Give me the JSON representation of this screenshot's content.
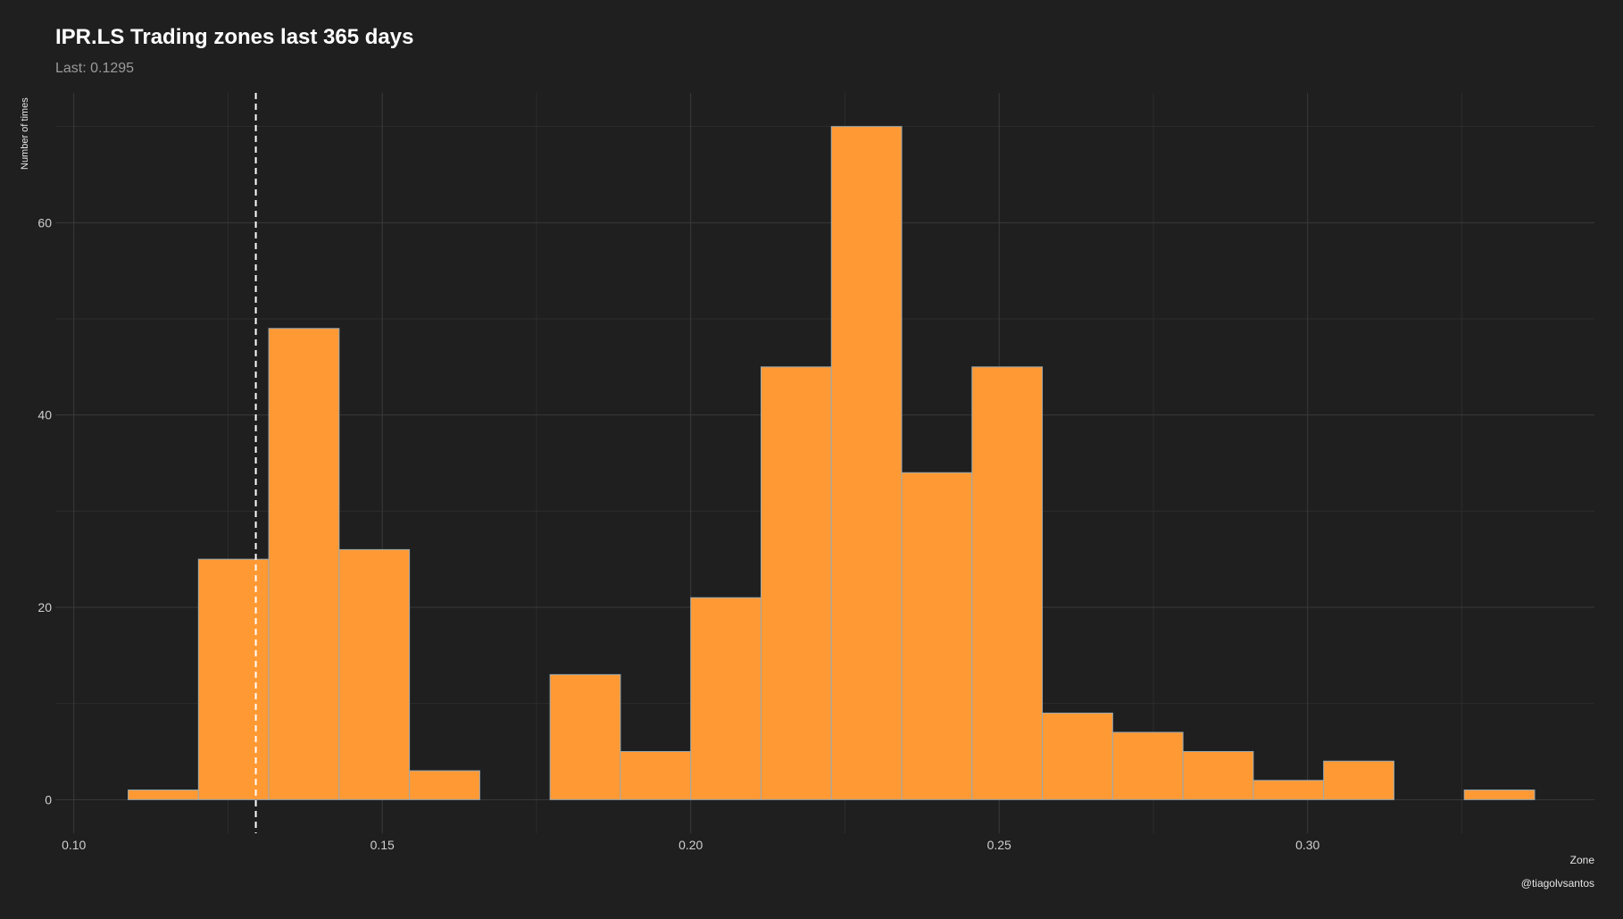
{
  "header": {
    "title": "IPR.LS Trading zones last 365 days",
    "subtitle": "Last: 0.1295"
  },
  "caption": "@tiagolvsantos",
  "chart_data": {
    "type": "bar",
    "title": "IPR.LS Trading zones last 365 days",
    "subtitle": "Last: 0.1295",
    "xlabel": "Zone",
    "ylabel": "Number of times",
    "xlim": [
      0.097,
      0.3465
    ],
    "ylim": [
      -3.5,
      73.5
    ],
    "x_ticks": [
      0.1,
      0.15,
      0.2,
      0.25,
      0.3
    ],
    "x_tick_labels": [
      "0.10",
      "0.15",
      "0.20",
      "0.25",
      "0.30"
    ],
    "y_ticks": [
      0,
      20,
      40,
      60
    ],
    "y_tick_labels": [
      "0",
      "20",
      "40",
      "60"
    ],
    "bin_width": 0.0114,
    "bin_start": 0.1088,
    "values": [
      1,
      25,
      49,
      26,
      3,
      0,
      13,
      5,
      21,
      45,
      70,
      34,
      45,
      9,
      7,
      5,
      2,
      4,
      0,
      1
    ],
    "reference_line": {
      "x": 0.1295,
      "style": "dashed",
      "color": "#ffffff"
    },
    "grid": true,
    "colors": {
      "background": "#1f1f1f",
      "bar_fill": "#ff9933",
      "bar_stroke": "#9aa9b0",
      "grid_major": "#3a3a3a",
      "grid_minor": "#2d2d2d"
    }
  }
}
